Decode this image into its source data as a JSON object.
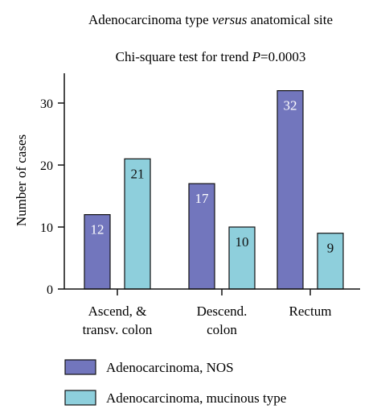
{
  "chart_data": {
    "type": "bar",
    "title_parts": [
      {
        "text": "Adenocarcinoma type ",
        "italic": false
      },
      {
        "text": "versus",
        "italic": true
      },
      {
        "text": " anatomical site",
        "italic": false
      }
    ],
    "subtitle_parts": [
      {
        "text": "Chi-square test for trend ",
        "italic": false
      },
      {
        "text": "P",
        "italic": true
      },
      {
        "text": "=0.0003",
        "italic": false
      }
    ],
    "ylabel": "Number of cases",
    "ylim": [
      0,
      40
    ],
    "yticks": [
      0,
      10,
      20,
      30
    ],
    "categories": [
      [
        "Ascend, &",
        "transv. colon"
      ],
      [
        "Descend.",
        "colon"
      ],
      [
        "Rectum"
      ]
    ],
    "series": [
      {
        "name": "Adenocarcinoma, NOS",
        "color": "#7276bd",
        "values": [
          12,
          17,
          32
        ]
      },
      {
        "name": "Adenocarcinoma, mucinous type",
        "color": "#8ecfdc",
        "values": [
          21,
          10,
          9
        ]
      }
    ],
    "legend_position": "bottom-left"
  }
}
